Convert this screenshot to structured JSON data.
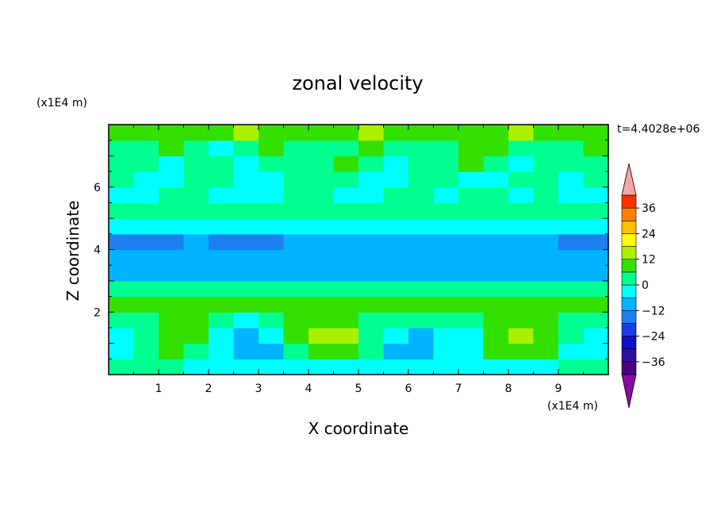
{
  "chart_data": {
    "type": "heatmap",
    "title": "zonal velocity",
    "xlabel": "X coordinate",
    "ylabel": "Z coordinate",
    "x_unit": "(x1E4 m)",
    "y_unit": "(x1E4 m)",
    "time_label": "t=4.4028e+06",
    "xlim": [
      0,
      10
    ],
    "ylim": [
      0,
      8
    ],
    "x_ticks": [
      1,
      2,
      3,
      4,
      5,
      6,
      7,
      8,
      9
    ],
    "y_ticks": [
      2,
      4,
      6
    ],
    "colorbar": {
      "levels": [
        -42,
        -36,
        -30,
        -24,
        -18,
        -12,
        -6,
        0,
        6,
        12,
        18,
        24,
        30,
        36,
        42
      ],
      "colors": [
        "#4b0082",
        "#2b0f9e",
        "#1010c8",
        "#1c3ce6",
        "#1e7ff0",
        "#00b4ff",
        "#00ffff",
        "#00ff90",
        "#33e000",
        "#aaf000",
        "#ffff00",
        "#ffc000",
        "#ff8000",
        "#ff3000",
        "#e00000"
      ],
      "under_color": "#8a0aa8",
      "over_color": "#f4a6a6",
      "tick_labels": [
        "36",
        "24",
        "12",
        "0",
        "-12",
        "-24",
        "-36"
      ],
      "tick_values": [
        36,
        24,
        12,
        0,
        -12,
        -24,
        -36
      ]
    },
    "z_values": [
      0.25,
      0.75,
      1.25,
      1.75,
      2.25,
      2.75,
      3.25,
      3.75,
      4.25,
      4.75,
      5.25,
      5.75,
      6.25,
      6.75,
      7.25,
      7.75
    ],
    "x_values": [
      0.25,
      0.75,
      1.25,
      1.75,
      2.25,
      2.75,
      3.25,
      3.75,
      4.25,
      4.75,
      5.25,
      5.75,
      6.25,
      6.75,
      7.25,
      7.75,
      8.25,
      8.75,
      9.25,
      9.75
    ],
    "values": [
      [
        4,
        2,
        2,
        -4,
        -6,
        -6,
        -4,
        -2,
        -4,
        -6,
        -6,
        -6,
        -4,
        -2,
        -4,
        -6,
        -4,
        -2,
        2,
        4
      ],
      [
        -4,
        2,
        6,
        4,
        -6,
        -10,
        -8,
        4,
        10,
        8,
        2,
        -8,
        -10,
        -6,
        -4,
        6,
        10,
        8,
        -2,
        -6
      ],
      [
        -4,
        4,
        10,
        8,
        -4,
        -8,
        -4,
        8,
        14,
        12,
        4,
        -6,
        -8,
        -6,
        -4,
        8,
        12,
        8,
        0,
        -4
      ],
      [
        2,
        4,
        8,
        6,
        2,
        -2,
        4,
        6,
        8,
        6,
        2,
        2,
        2,
        2,
        4,
        6,
        8,
        6,
        2,
        2
      ],
      [
        6,
        8,
        8,
        8,
        10,
        8,
        8,
        8,
        8,
        8,
        8,
        10,
        8,
        8,
        8,
        8,
        8,
        8,
        8,
        8
      ],
      [
        4,
        4,
        4,
        4,
        4,
        4,
        4,
        4,
        4,
        4,
        4,
        4,
        4,
        4,
        4,
        4,
        4,
        4,
        4,
        4
      ],
      [
        -8,
        -8,
        -8,
        -8,
        -8,
        -8,
        -8,
        -8,
        -8,
        -8,
        -8,
        -8,
        -8,
        -8,
        -8,
        -8,
        -8,
        -8,
        -8,
        -8
      ],
      [
        -10,
        -12,
        -10,
        -10,
        -10,
        -10,
        -10,
        -10,
        -10,
        -10,
        -10,
        -10,
        -10,
        -10,
        -10,
        -10,
        -10,
        -10,
        -10,
        -10
      ],
      [
        -14,
        -14,
        -14,
        -12,
        -14,
        -14,
        -14,
        -12,
        -10,
        -10,
        -10,
        -10,
        -10,
        -10,
        -10,
        -12,
        -10,
        -12,
        -14,
        -14
      ],
      [
        -4,
        -4,
        -6,
        -6,
        -6,
        -6,
        -6,
        -6,
        -6,
        -6,
        -6,
        -4,
        -6,
        -6,
        -6,
        -6,
        -6,
        -6,
        -6,
        -6
      ],
      [
        4,
        2,
        2,
        2,
        0,
        2,
        4,
        2,
        2,
        0,
        2,
        2,
        2,
        2,
        2,
        2,
        2,
        2,
        2,
        2
      ],
      [
        -4,
        -2,
        2,
        4,
        -2,
        -4,
        -2,
        2,
        4,
        -2,
        -4,
        0,
        2,
        -2,
        2,
        4,
        -2,
        2,
        -2,
        -2
      ],
      [
        2,
        -2,
        -4,
        2,
        4,
        -2,
        -4,
        2,
        4,
        2,
        -4,
        -2,
        2,
        4,
        -2,
        -4,
        2,
        4,
        -2,
        2
      ],
      [
        4,
        2,
        -2,
        4,
        2,
        -4,
        2,
        4,
        2,
        6,
        4,
        -2,
        4,
        2,
        6,
        4,
        -2,
        2,
        4,
        2
      ],
      [
        2,
        4,
        6,
        2,
        -2,
        4,
        6,
        4,
        2,
        4,
        6,
        4,
        2,
        4,
        6,
        8,
        4,
        2,
        4,
        6
      ],
      [
        10,
        8,
        6,
        8,
        10,
        12,
        8,
        6,
        8,
        10,
        12,
        10,
        8,
        6,
        8,
        10,
        12,
        10,
        8,
        10
      ]
    ]
  }
}
